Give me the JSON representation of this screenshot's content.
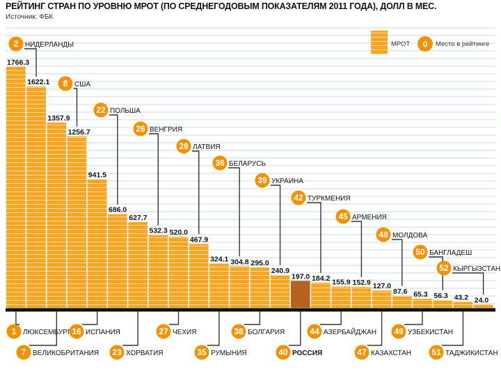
{
  "title": "РЕЙТИНГ СТРАН ПО УРОВНЮ МРОТ (ПО СРЕДНЕГОДОВЫМ ПОКАЗАТЕЛЯМ 2011 ГОДА), ДОЛЛ В МЕС.",
  "source": "Источник: ФБК",
  "legend": {
    "mrot_label": "МРОТ",
    "rank_label": "Место в рейтинге",
    "rank_example": "0"
  },
  "colors": {
    "bar": "#f5a623",
    "russia_bar": "#b8621b",
    "badge": "#f39200",
    "grid": "#c9dbe8",
    "axis": "#111111"
  },
  "chart_data": {
    "type": "bar",
    "title": "РЕЙТИНГ СТРАН ПО УРОВНЮ МРОТ (ПО СРЕДНЕГОДОВЫМ ПОКАЗАТЕЛЯМ 2011 ГОДА), ДОЛЛ В МЕС.",
    "xlabel": "",
    "ylabel": "долл в мес.",
    "ylim": [
      0,
      1900
    ],
    "grid": true,
    "highlight": "РОССИЯ",
    "categories": [
      "ЛЮКСЕМБУРГ",
      "НИДЕРЛАНДЫ",
      "ВЕЛИКОБРИТАНИЯ",
      "США",
      "ИСПАНИЯ",
      "ПОЛЬША",
      "ХОРВАТИЯ",
      "ВЕНГРИЯ",
      "ЧЕХИЯ",
      "ЛАТВИЯ",
      "РУМЫНИЯ",
      "БЕЛАРУСЬ",
      "БОЛГАРИЯ",
      "УКРАИНА",
      "РОССИЯ",
      "ТУРКМЕНИЯ",
      "АЗЕРБАЙДЖАН",
      "АРМЕНИЯ",
      "КАЗАХСТАН",
      "МОЛДОВА",
      "УЗБЕКИСТАН",
      "БАНГЛАДЕШ",
      "ТАДЖИКИСТАН",
      "КЫРГЫЗСТАН"
    ],
    "ranks": [
      1,
      2,
      7,
      8,
      16,
      22,
      23,
      26,
      27,
      28,
      35,
      36,
      38,
      39,
      40,
      42,
      44,
      45,
      47,
      48,
      49,
      50,
      51,
      52
    ],
    "values": [
      1766.3,
      1622.1,
      1357.9,
      1256.7,
      941.5,
      686.0,
      627.7,
      532.3,
      520.0,
      467.9,
      324.1,
      304.8,
      295.0,
      240.9,
      197.0,
      184.2,
      155.9,
      152.9,
      127.0,
      87.6,
      65.3,
      56.3,
      43.2,
      24.0
    ],
    "value_labels": [
      "1766.3",
      "1622.1",
      "1357.9",
      "1256.7",
      "941.5",
      "686.0",
      "627.7",
      "532.3",
      "520.0",
      "467.9",
      "324.1",
      "304.8",
      "295.0",
      "240.9",
      "197.0",
      "184.2",
      "155.9",
      "152.9",
      "127.0",
      "87.6",
      "65.3",
      "56.3",
      "43.2",
      "24.0"
    ],
    "label_positions": [
      "bottom",
      "top",
      "bottom",
      "top",
      "bottom",
      "top",
      "bottom",
      "top",
      "bottom",
      "top",
      "bottom",
      "top",
      "bottom",
      "top",
      "bottom",
      "top",
      "bottom",
      "top",
      "bottom",
      "top",
      "bottom",
      "top",
      "bottom",
      "top"
    ]
  }
}
